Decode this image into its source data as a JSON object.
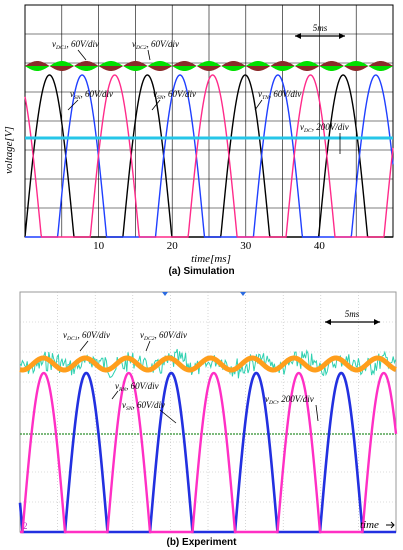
{
  "panels": [
    {
      "caption": "(a) Simulation",
      "ylabel": "voltage[V]",
      "xlabel": "time[ms]",
      "timescale": "5ms",
      "annotations": [
        "v_{DC1}, 60V/div",
        "v_{DC2}, 60V/div",
        "v_{SN}, 60V/div",
        "v_{SN}, 60V/div",
        "v_{TN}, 60V/div",
        "v_{DC}, 200V/div"
      ]
    },
    {
      "caption": "(b) Experiment",
      "xlabel": "time",
      "timescale": "5ms",
      "channel_marker": "2",
      "annotations": [
        "v_{DC1}, 60V/div",
        "v_{DC2}, 60V/div",
        "v_{RN}, 60V/div",
        "v_{SN}, 60V/div",
        "v_{DC}, 200V/div"
      ]
    }
  ],
  "colors": {
    "grid": "#000000",
    "dc_ripple_a1": "#00e000",
    "dc_ripple_a2": "#8b2a2a",
    "phase_a_black": "#000000",
    "phase_a_blue": "#1f3fff",
    "phase_a_pink": "#ff2b8a",
    "dc_line_a": "#26c6e8",
    "dc_ripple_b1": "#2fd1b0",
    "dc_ripple_b2": "#ff9e1c",
    "phase_b_blue": "#2230e0",
    "phase_b_pink": "#ff2fc4",
    "dc_line_b": "#2f8f2f"
  },
  "chart_data": [
    {
      "type": "line",
      "title": "",
      "xlabel": "time[ms]",
      "ylabel": "voltage[V]",
      "x_ticks": [
        10,
        20,
        30,
        40
      ],
      "xlim": [
        0,
        50
      ],
      "grid": true,
      "series": [
        {
          "name": "v_{DC1}",
          "values": "rectified-ripple band"
        },
        {
          "name": "v_{DC2}",
          "values": "rectified-ripple band"
        },
        {
          "name": "v_{SN}",
          "values": "half-rectified sine, period ~13.3 ms"
        },
        {
          "name": "v_{TN}",
          "values": "half-rectified sine, period ~13.3 ms"
        },
        {
          "name": "v_{DC}",
          "values": "constant line"
        }
      ]
    },
    {
      "type": "line",
      "title": "",
      "xlabel": "time",
      "ylabel": "",
      "grid": true,
      "series": [
        {
          "name": "v_{DC1}",
          "values": "noisy ripple band"
        },
        {
          "name": "v_{DC2}",
          "values": "noisy ripple band"
        },
        {
          "name": "v_{RN}",
          "values": "half-rectified sine"
        },
        {
          "name": "v_{SN}",
          "values": "half-rectified sine"
        },
        {
          "name": "v_{DC}",
          "values": "constant noisy line"
        }
      ]
    }
  ]
}
